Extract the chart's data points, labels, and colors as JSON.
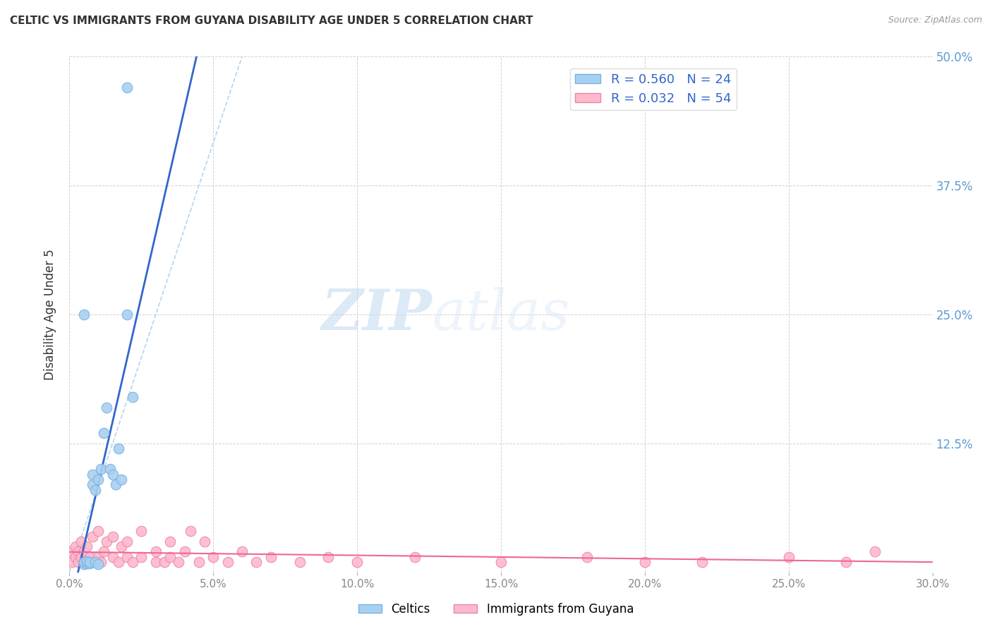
{
  "title": "CELTIC VS IMMIGRANTS FROM GUYANA DISABILITY AGE UNDER 5 CORRELATION CHART",
  "source": "Source: ZipAtlas.com",
  "ylabel": "Disability Age Under 5",
  "xlim": [
    0.0,
    0.3
  ],
  "ylim": [
    0.0,
    0.5
  ],
  "x_ticks": [
    0.0,
    0.05,
    0.1,
    0.15,
    0.2,
    0.25,
    0.3
  ],
  "x_tick_labels": [
    "0.0%",
    "5.0%",
    "10.0%",
    "15.0%",
    "20.0%",
    "25.0%",
    "30.0%"
  ],
  "y_ticks": [
    0.0,
    0.125,
    0.25,
    0.375,
    0.5
  ],
  "y_right_labels": [
    "",
    "12.5%",
    "25.0%",
    "37.5%",
    "50.0%"
  ],
  "celtics_color": "#a8d0f0",
  "celtics_edge_color": "#7ab0e0",
  "guyana_color": "#ffb8cc",
  "guyana_edge_color": "#e888a8",
  "trend_celtics_color": "#3366cc",
  "trend_guyana_color": "#ee6699",
  "diag_color": "#b8d4ee",
  "legend_R_celtics": "R = 0.560",
  "legend_N_celtics": "N = 24",
  "legend_R_guyana": "R = 0.032",
  "legend_N_guyana": "N = 54",
  "label_celtics": "Celtics",
  "label_guyana": "Immigrants from Guyana",
  "watermark_zip": "ZIP",
  "watermark_atlas": "atlas",
  "background_color": "#ffffff",
  "celtics_x": [
    0.005,
    0.005,
    0.006,
    0.006,
    0.007,
    0.007,
    0.008,
    0.008,
    0.009,
    0.009,
    0.01,
    0.01,
    0.011,
    0.012,
    0.013,
    0.014,
    0.015,
    0.016,
    0.017,
    0.018,
    0.02,
    0.022,
    0.005,
    0.02
  ],
  "celtics_y": [
    0.008,
    0.01,
    0.009,
    0.011,
    0.009,
    0.01,
    0.085,
    0.095,
    0.01,
    0.08,
    0.008,
    0.09,
    0.1,
    0.135,
    0.16,
    0.1,
    0.095,
    0.085,
    0.12,
    0.09,
    0.25,
    0.17,
    0.25,
    0.47
  ],
  "guyana_x": [
    0.001,
    0.001,
    0.002,
    0.002,
    0.003,
    0.003,
    0.004,
    0.004,
    0.005,
    0.005,
    0.006,
    0.007,
    0.008,
    0.009,
    0.01,
    0.01,
    0.011,
    0.012,
    0.013,
    0.015,
    0.015,
    0.017,
    0.018,
    0.02,
    0.02,
    0.022,
    0.025,
    0.025,
    0.03,
    0.03,
    0.033,
    0.035,
    0.035,
    0.038,
    0.04,
    0.042,
    0.045,
    0.047,
    0.05,
    0.055,
    0.06,
    0.065,
    0.07,
    0.08,
    0.09,
    0.1,
    0.12,
    0.15,
    0.18,
    0.2,
    0.22,
    0.25,
    0.27,
    0.28
  ],
  "guyana_y": [
    0.01,
    0.02,
    0.015,
    0.025,
    0.01,
    0.02,
    0.015,
    0.03,
    0.01,
    0.02,
    0.025,
    0.015,
    0.035,
    0.01,
    0.015,
    0.04,
    0.01,
    0.02,
    0.03,
    0.015,
    0.035,
    0.01,
    0.025,
    0.015,
    0.03,
    0.01,
    0.04,
    0.015,
    0.01,
    0.02,
    0.01,
    0.015,
    0.03,
    0.01,
    0.02,
    0.04,
    0.01,
    0.03,
    0.015,
    0.01,
    0.02,
    0.01,
    0.015,
    0.01,
    0.015,
    0.01,
    0.015,
    0.01,
    0.015,
    0.01,
    0.01,
    0.015,
    0.01,
    0.02
  ]
}
